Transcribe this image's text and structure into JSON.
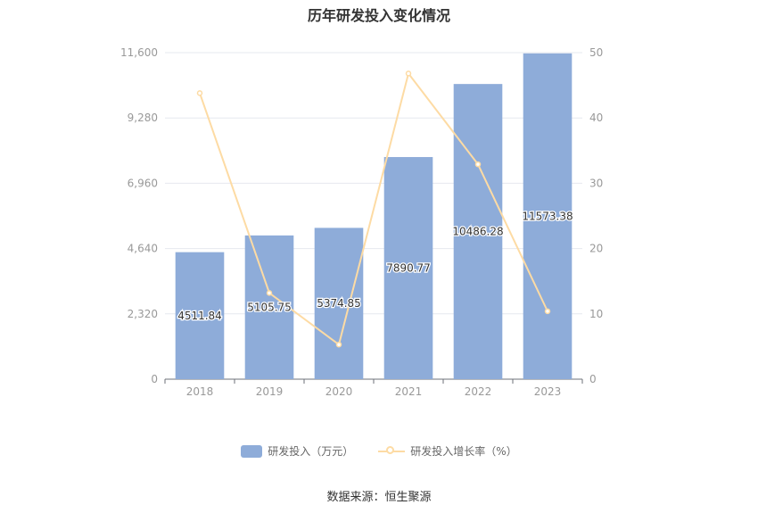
{
  "chart_data": {
    "type": "bar",
    "title": "历年研发投入变化情况",
    "categories": [
      "2018",
      "2019",
      "2020",
      "2021",
      "2022",
      "2023"
    ],
    "series": [
      {
        "name": "研发投入（万元）",
        "type": "bar",
        "axis": "left",
        "values": [
          4511.84,
          5105.75,
          5374.85,
          7890.77,
          10486.28,
          11573.38
        ],
        "labels": [
          "4511.84",
          "5105.75",
          "5374.85",
          "7890.77",
          "10486.28",
          "11573.38"
        ]
      },
      {
        "name": "研发投入增长率（%）",
        "type": "line",
        "axis": "right",
        "values": [
          43.8,
          13.2,
          5.3,
          46.8,
          32.9,
          10.4
        ]
      }
    ],
    "y_left": {
      "min": 0,
      "max": 11600,
      "ticks": [
        0,
        2320,
        4640,
        6960,
        9280,
        11600
      ],
      "tick_labels": [
        "0",
        "2,320",
        "4,640",
        "6,960",
        "9,280",
        "11,600"
      ]
    },
    "y_right": {
      "min": 0,
      "max": 50,
      "ticks": [
        0,
        10,
        20,
        30,
        40,
        50
      ],
      "tick_labels": [
        "0",
        "10",
        "20",
        "30",
        "40",
        "50"
      ]
    },
    "grid": true,
    "legend_position": "bottom",
    "colors": {
      "bar": "#8eacd9",
      "line": "#fddba4",
      "grid": "#e6e8ef",
      "axis_text": "#999999"
    }
  },
  "source_note": "数据来源：恒生聚源"
}
